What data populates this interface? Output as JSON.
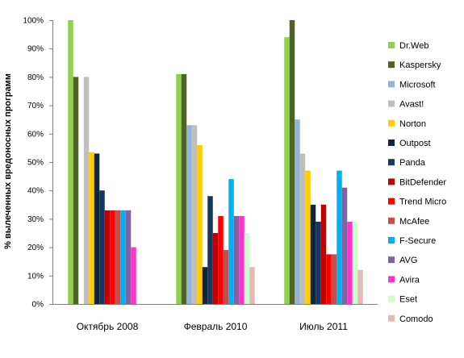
{
  "chart_data": {
    "type": "bar",
    "title": "",
    "xlabel": "",
    "ylabel": "% вылеченных вредоносных программ",
    "ylim": [
      0,
      100
    ],
    "yticks": [
      "0%",
      "10%",
      "20%",
      "30%",
      "40%",
      "50%",
      "60%",
      "70%",
      "80%",
      "90%",
      "100%"
    ],
    "grid": false,
    "legend_position": "right",
    "categories": [
      "Октябрь 2008",
      "Февраль 2010",
      "Июль 2011"
    ],
    "series": [
      {
        "name": "Dr.Web",
        "color": "#92d050",
        "values": [
          100,
          81,
          94
        ]
      },
      {
        "name": "Kaspersky",
        "color": "#4f6228",
        "values": [
          80,
          81,
          100
        ]
      },
      {
        "name": "Microsoft",
        "color": "#95b3d7",
        "values": [
          null,
          63,
          65
        ]
      },
      {
        "name": "Avast!",
        "color": "#bfbfbf",
        "values": [
          80,
          63,
          53
        ]
      },
      {
        "name": "Norton",
        "color": "#ffcc00",
        "values": [
          53.5,
          56,
          47
        ]
      },
      {
        "name": "Outpost",
        "color": "#0f243e",
        "values": [
          53,
          13,
          35
        ]
      },
      {
        "name": "Panda",
        "color": "#17375e",
        "values": [
          40,
          38,
          29
        ]
      },
      {
        "name": "BitDefender",
        "color": "#c00000",
        "values": [
          33,
          25,
          35
        ]
      },
      {
        "name": "Trend Micro",
        "color": "#ff0000",
        "values": [
          33,
          31,
          17.5
        ]
      },
      {
        "name": "McAfee",
        "color": "#c0504d",
        "values": [
          33,
          19,
          17.5
        ]
      },
      {
        "name": "F-Secure",
        "color": "#00b0f0",
        "values": [
          33,
          44,
          47
        ]
      },
      {
        "name": "AVG",
        "color": "#8064a2",
        "values": [
          33,
          31,
          41
        ]
      },
      {
        "name": "Avira",
        "color": "#ff33cc",
        "values": [
          20,
          31,
          29
        ]
      },
      {
        "name": "Eset",
        "color": "#ccffcc",
        "values": [
          null,
          25,
          29
        ]
      },
      {
        "name": "Comodo",
        "color": "#e6b9b8",
        "values": [
          null,
          13,
          12
        ]
      }
    ]
  }
}
